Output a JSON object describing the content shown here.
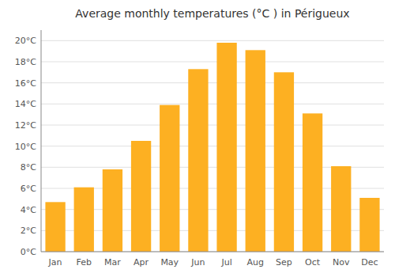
{
  "chart_data": {
    "type": "bar",
    "title": "Average monthly temperatures (°C ) in Périgueux",
    "categories": [
      "Jan",
      "Feb",
      "Mar",
      "Apr",
      "May",
      "Jun",
      "Jul",
      "Aug",
      "Sep",
      "Oct",
      "Nov",
      "Dec"
    ],
    "values": [
      4.7,
      6.1,
      7.8,
      10.5,
      13.9,
      17.3,
      19.8,
      19.1,
      17.0,
      13.1,
      8.1,
      5.1
    ],
    "color": "#FDB022",
    "ylim": [
      0,
      21
    ],
    "yticks": [
      {
        "value": 0,
        "label": "0°C"
      },
      {
        "value": 2,
        "label": "2°C"
      },
      {
        "value": 4,
        "label": "4°C"
      },
      {
        "value": 6,
        "label": "6°C"
      },
      {
        "value": 8,
        "label": "8°C"
      },
      {
        "value": 10,
        "label": "10°C"
      },
      {
        "value": 12,
        "label": "12°C"
      },
      {
        "value": 14,
        "label": "14°C"
      },
      {
        "value": 16,
        "label": "16°C"
      },
      {
        "value": 18,
        "label": "18°C"
      },
      {
        "value": 20,
        "label": "20°C"
      }
    ],
    "grid": true
  }
}
